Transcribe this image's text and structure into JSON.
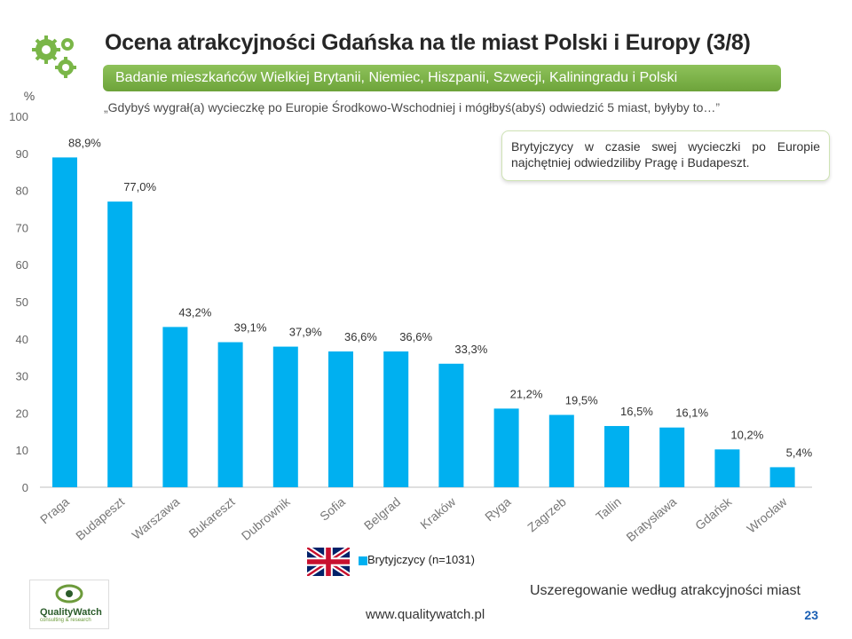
{
  "header": {
    "title": "Ocena atrakcyjności Gdańska na tle miast Polski i Europy (3/8)",
    "subtitle": "Badanie mieszkańców Wielkiej Brytanii, Niemiec, Hiszpanii, Szwecji, Kaliningradu i Polski",
    "question": "Gdybyś wygrał(a) wycieczkę po Europie Środkowo-Wschodniej i mógłbyś(abyś) odwiedzić 5 miast, byłyby to…",
    "quote_open": "„",
    "quote_close": "”"
  },
  "note": "Brytyjczycy w czasie swej wycieczki po Europie najchętniej odwiedziliby Pragę i Budapeszt.",
  "footer": {
    "sort_note": "Uszeregowanie według atrakcyjności miast",
    "url": "www.qualitywatch.pl",
    "page_number": "23",
    "logo_text": "QualityWatch",
    "logo_sub": "consulting & research"
  },
  "colors": {
    "bar": "#00b0f0",
    "accent_green": "#7ab648",
    "title": "#262626"
  },
  "chart_data": {
    "type": "bar",
    "ylabel": "%",
    "ylim": [
      0,
      100
    ],
    "yticks": [
      0,
      10,
      20,
      30,
      40,
      50,
      60,
      70,
      80,
      90,
      100
    ],
    "grid": false,
    "legend_position": "bottom",
    "categories": [
      "Praga",
      "Budapeszt",
      "Warszawa",
      "Bukareszt",
      "Dubrownik",
      "Sofia",
      "Belgrad",
      "Kraków",
      "Ryga",
      "Zagrzeb",
      "Tallin",
      "Bratysława",
      "Gdańsk",
      "Wrocław"
    ],
    "series": [
      {
        "name": "Brytyjczycy (n=1031)",
        "values": [
          88.9,
          77.0,
          43.2,
          39.1,
          37.9,
          36.6,
          36.6,
          33.3,
          21.2,
          19.5,
          16.5,
          16.1,
          10.2,
          5.4
        ],
        "labels": [
          "88,9%",
          "77,0%",
          "43,2%",
          "39,1%",
          "37,9%",
          "36,6%",
          "36,6%",
          "33,3%",
          "21,2%",
          "19,5%",
          "16,5%",
          "16,1%",
          "10,2%",
          "5,4%"
        ]
      }
    ]
  }
}
